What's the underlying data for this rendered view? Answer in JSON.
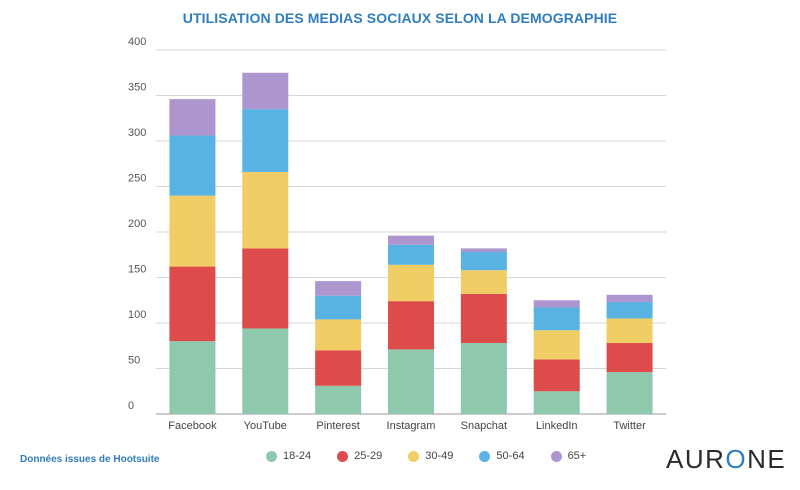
{
  "source_note": "Données issues de Hootsuite",
  "brand": {
    "prefix": "AUR",
    "o": "O",
    "suffix": "NE"
  },
  "colors": {
    "18-24": "#8ec8ad",
    "25-29": "#dd4b4b",
    "30-49": "#f1cd66",
    "50-64": "#58b3e3",
    "65+": "#ad95cf",
    "title": "#2f7dbf",
    "grid": "#d6d6d6"
  },
  "chart_data": {
    "type": "bar",
    "stacked": true,
    "title": "UTILISATION DES MEDIAS SOCIAUX SELON LA DEMOGRAPHIE",
    "xlabel": "",
    "ylabel": "",
    "ylim": [
      0,
      400
    ],
    "yticks": [
      0,
      50,
      100,
      150,
      200,
      250,
      300,
      350,
      400
    ],
    "grid": true,
    "legend_position": "bottom",
    "categories": [
      "Facebook",
      "YouTube",
      "Pinterest",
      "Instagram",
      "Snapchat",
      "LinkedIn",
      "Twitter"
    ],
    "series": [
      {
        "name": "18-24",
        "values": [
          80,
          94,
          31,
          71,
          78,
          25,
          46
        ]
      },
      {
        "name": "25-29",
        "values": [
          82,
          88,
          39,
          53,
          54,
          35,
          32
        ]
      },
      {
        "name": "30-49",
        "values": [
          78,
          84,
          34,
          40,
          26,
          32,
          27
        ]
      },
      {
        "name": "50-64",
        "values": [
          66,
          69,
          26,
          22,
          20,
          25,
          18
        ]
      },
      {
        "name": "65+",
        "values": [
          40,
          40,
          16,
          10,
          4,
          8,
          8
        ]
      }
    ]
  }
}
